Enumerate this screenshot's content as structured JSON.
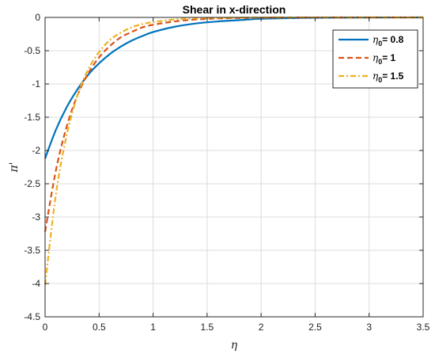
{
  "chart_data": {
    "type": "line",
    "title": "Shear in x-direction",
    "xlabel": "η",
    "ylabel": "π'",
    "xlim": [
      0,
      3.5
    ],
    "ylim": [
      -4.5,
      0
    ],
    "x_ticks": [
      "0",
      "0.5",
      "1",
      "1.5",
      "2",
      "2.5",
      "3",
      "3.5"
    ],
    "y_ticks": [
      "0",
      "-0.5",
      "-1",
      "-1.5",
      "-2",
      "-2.5",
      "-3",
      "-3.5",
      "-4",
      "-4.5"
    ],
    "grid": true,
    "legend_position": "top-right",
    "x": [
      0,
      0.1,
      0.2,
      0.3,
      0.4,
      0.5,
      0.6,
      0.7,
      0.8,
      0.9,
      1.0,
      1.2,
      1.4,
      1.6,
      1.8,
      2.0,
      2.25,
      2.5,
      2.75,
      3.0,
      3.25,
      3.5
    ],
    "series": [
      {
        "name": "η0= 0.8",
        "legend_symbol": "η",
        "legend_subscript": "0",
        "legend_value": "= 0.8",
        "color": "#0072BD",
        "style": "solid",
        "values": [
          -2.12,
          -1.69,
          -1.35,
          -1.08,
          -0.86,
          -0.69,
          -0.55,
          -0.44,
          -0.35,
          -0.28,
          -0.22,
          -0.14,
          -0.09,
          -0.06,
          -0.04,
          -0.02,
          -0.01,
          -0.006,
          -0.003,
          -0.002,
          -0.001,
          0
        ]
      },
      {
        "name": "η0= 1",
        "legend_symbol": "η",
        "legend_subscript": "0",
        "legend_value": "= 1",
        "color": "#D95319",
        "style": "dashed",
        "values": [
          -3.22,
          -2.3,
          -1.64,
          -1.17,
          -0.84,
          -0.6,
          -0.43,
          -0.3,
          -0.22,
          -0.15,
          -0.11,
          -0.06,
          -0.03,
          -0.015,
          -0.008,
          -0.004,
          -0.002,
          -0.001,
          0,
          0,
          0,
          0
        ]
      },
      {
        "name": "η0= 1.5",
        "legend_symbol": "η",
        "legend_subscript": "0",
        "legend_value": "= 1.5",
        "color": "#EDB120",
        "style": "dashdot",
        "values": [
          -4.02,
          -2.66,
          -1.77,
          -1.17,
          -0.78,
          -0.52,
          -0.34,
          -0.23,
          -0.15,
          -0.1,
          -0.07,
          -0.03,
          -0.013,
          -0.006,
          -0.003,
          -0.001,
          0,
          0,
          0,
          0,
          0,
          0
        ]
      }
    ]
  }
}
